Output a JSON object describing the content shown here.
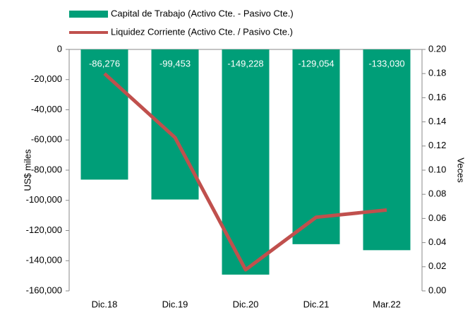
{
  "chart_data": {
    "type": "bar",
    "categories": [
      "Dic.18",
      "Dic.19",
      "Dic.20",
      "Dic.21",
      "Mar.22"
    ],
    "series": [
      {
        "name": "Capital de Trabajo (Activo Cte. - Pasivo Cte.)",
        "type": "bar",
        "color": "#009e78",
        "values": [
          -86276,
          -99453,
          -149228,
          -129054,
          -133030
        ],
        "value_labels": [
          "-86,276",
          "-99,453",
          "-149,228",
          "-129,054",
          "-133,030"
        ]
      },
      {
        "name": "Liquidez Corriente (Activo Cte. / Pasivo Cte.)",
        "type": "line",
        "color": "#c0504d",
        "axis": "y2",
        "values": [
          0.18,
          0.127,
          0.0175,
          0.061,
          0.067
        ]
      }
    ],
    "ylabel": "US$ miles",
    "y2label": "Veces",
    "ylim": [
      -160000,
      0
    ],
    "yticks": [
      0,
      {
        "value": -20000,
        "label": "-20,000"
      },
      {
        "value": -40000,
        "label": "-40,000"
      },
      {
        "value": -60000,
        "label": "-60,000"
      },
      {
        "value": -80000,
        "label": "-80,000"
      },
      {
        "value": -100000,
        "label": "-100,000"
      },
      {
        "value": -120000,
        "label": "-120,000"
      },
      {
        "value": -140000,
        "label": "-140,000"
      },
      {
        "value": -160000,
        "label": "-160,000"
      }
    ],
    "y2lim": [
      0,
      0.2
    ],
    "y2ticks": [
      {
        "value": 0,
        "label": "0.00"
      },
      {
        "value": 0.02,
        "label": "0.02"
      },
      {
        "value": 0.04,
        "label": "0.04"
      },
      {
        "value": 0.06,
        "label": "0.06"
      },
      {
        "value": 0.08,
        "label": "0.08"
      },
      {
        "value": 0.1,
        "label": "0.10"
      },
      {
        "value": 0.12,
        "label": "0.12"
      },
      {
        "value": 0.14,
        "label": "0.14"
      },
      {
        "value": 0.16,
        "label": "0.16"
      },
      {
        "value": 0.18,
        "label": "0.18"
      },
      {
        "value": 0.2,
        "label": "0.20"
      }
    ],
    "legend": "top"
  }
}
